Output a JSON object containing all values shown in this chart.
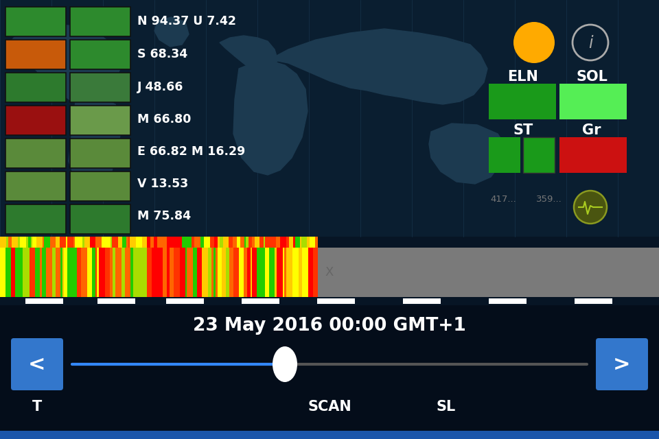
{
  "bg_color": "#071525",
  "map_bg": "#0a1e30",
  "title_date": "23 May 2016 00:00 GMT+1",
  "left_labels": [
    "N 94.37 U 7.42",
    "S 68.34",
    "J 48.66",
    "M 66.80",
    "E 66.82 M 16.29",
    "V 13.53",
    "M 75.84"
  ],
  "box_colors_col1": [
    "#2d8a2d",
    "#c85a0a",
    "#2d7a2d",
    "#9a1010",
    "#5a8a3a",
    "#5a8a3a",
    "#2d7a2d"
  ],
  "box_colors_col2": [
    "#2d8a2d",
    "#2d8a2d",
    "#3a7a3a",
    "#6a9a4a",
    "#5a8a3a",
    "#5a8a3a",
    "#2d7a2d"
  ],
  "eln_color": "#1a9a1a",
  "sol_color": "#55ee55",
  "st_color": "#1a9a1a",
  "gr_color": "#cc1111",
  "sun_color": "#ffaa00",
  "info_color": "#aaaaaa",
  "bottom_labels": [
    "T",
    "SCAN",
    "SL"
  ],
  "slider_color": "#3388ff",
  "button_color": "#3377cc",
  "gray_bar_color": "#7a7a7a",
  "bottom_bg": "#040d1a",
  "grid_color": "#1a3a55",
  "pulse_bg": "#4a5510",
  "pulse_border": "#8a9a20",
  "pulse_line": "#aacc20"
}
